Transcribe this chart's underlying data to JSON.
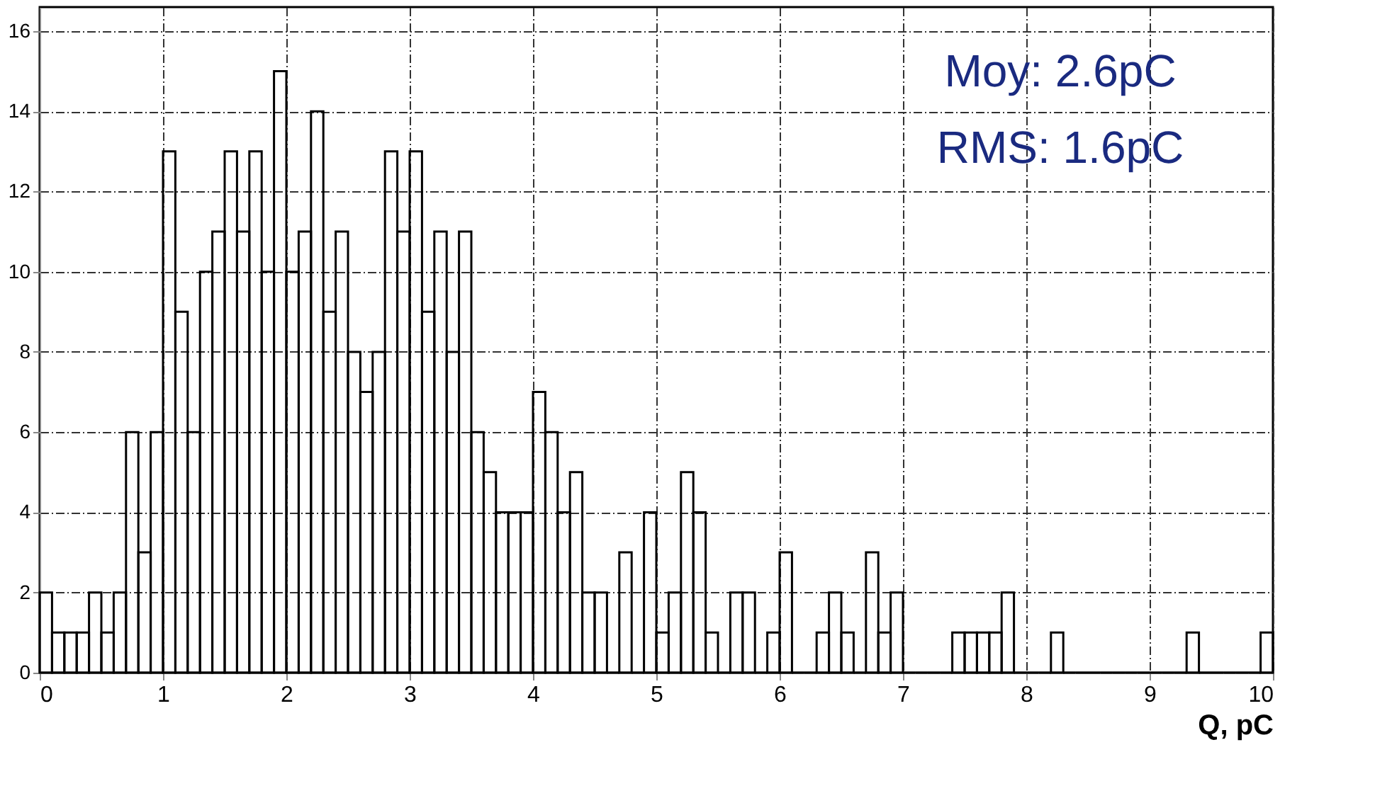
{
  "chart_data": {
    "type": "histogram",
    "xlabel": "Q, pC",
    "color": "#000000",
    "bins": [
      0,
      0.1,
      0.2,
      0.3,
      0.4,
      0.5,
      0.6,
      0.7,
      0.8,
      0.9,
      1,
      1.1,
      1.2,
      1.3,
      1.4,
      1.5,
      1.6,
      1.7,
      1.8,
      1.9,
      2,
      2.1,
      2.2,
      2.3,
      2.4,
      2.5,
      2.6,
      2.7,
      2.8,
      2.9,
      3,
      3.1,
      3.2,
      3.3,
      3.4,
      3.5,
      3.6,
      3.7,
      3.8,
      3.9,
      4,
      4.1,
      4.2,
      4.3,
      4.4,
      4.5,
      4.6,
      4.7,
      4.8,
      4.9,
      5,
      5.1,
      5.2,
      5.3,
      5.4,
      5.5,
      5.6,
      5.7,
      5.8,
      5.9,
      6,
      6.1,
      6.2,
      6.3,
      6.4,
      6.5,
      6.6,
      6.7,
      6.8,
      6.9,
      7,
      7.1,
      7.2,
      7.3,
      7.4,
      7.5,
      7.6,
      7.7,
      7.8,
      7.9,
      8,
      8.1,
      8.2,
      8.3,
      8.4,
      8.5,
      8.6,
      8.7,
      8.8,
      8.9,
      9,
      9.1,
      9.2,
      9.3,
      9.4,
      9.5,
      9.6,
      9.7,
      9.8,
      9.9,
      10
    ],
    "values": [
      2,
      1,
      1,
      1,
      2,
      1,
      2,
      6,
      3,
      6,
      13,
      9,
      6,
      10,
      11,
      13,
      11,
      13,
      10,
      15,
      10,
      11,
      14,
      9,
      11,
      8,
      7,
      8,
      13,
      11,
      13,
      9,
      11,
      8,
      11,
      6,
      5,
      4,
      4,
      4,
      7,
      6,
      4,
      5,
      2,
      2,
      0,
      3,
      0,
      4,
      1,
      2,
      5,
      4,
      1,
      0,
      2,
      2,
      0,
      1,
      3,
      0,
      0,
      1,
      2,
      1,
      0,
      3,
      1,
      2,
      0,
      0,
      0,
      0,
      1,
      1,
      1,
      1,
      2,
      0,
      0,
      0,
      1,
      0,
      0,
      0,
      0,
      0,
      0,
      0,
      0,
      0,
      0,
      1,
      0,
      0,
      0,
      0,
      0,
      1
    ],
    "xlim": [
      0,
      10
    ],
    "xticks": [
      0,
      1,
      2,
      3,
      4,
      5,
      6,
      7,
      8,
      9,
      10
    ],
    "ylim": [
      0,
      16.6
    ],
    "yticks": [
      0,
      2,
      4,
      6,
      8,
      10,
      12,
      14,
      16
    ],
    "grid": true,
    "annotations": [
      "Moy: 2.6pC",
      "RMS: 1.6pC"
    ]
  }
}
